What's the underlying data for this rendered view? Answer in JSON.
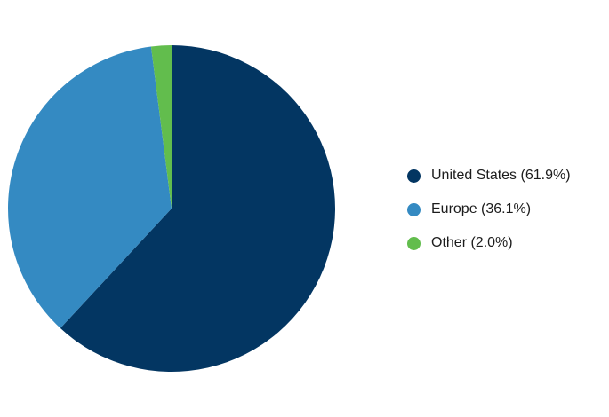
{
  "chart_data": {
    "type": "pie",
    "title": "",
    "categories": [
      "United States",
      "Europe",
      "Other"
    ],
    "values": [
      61.9,
      36.1,
      2.0
    ],
    "colors": [
      "#033662",
      "#348ac2",
      "#62bd4d"
    ],
    "legend": {
      "position": "right",
      "labels": [
        "United States (61.9%)",
        "Europe (36.1%)",
        "Other (2.0%)"
      ]
    },
    "start_angle": "12 o'clock",
    "direction": "clockwise"
  }
}
